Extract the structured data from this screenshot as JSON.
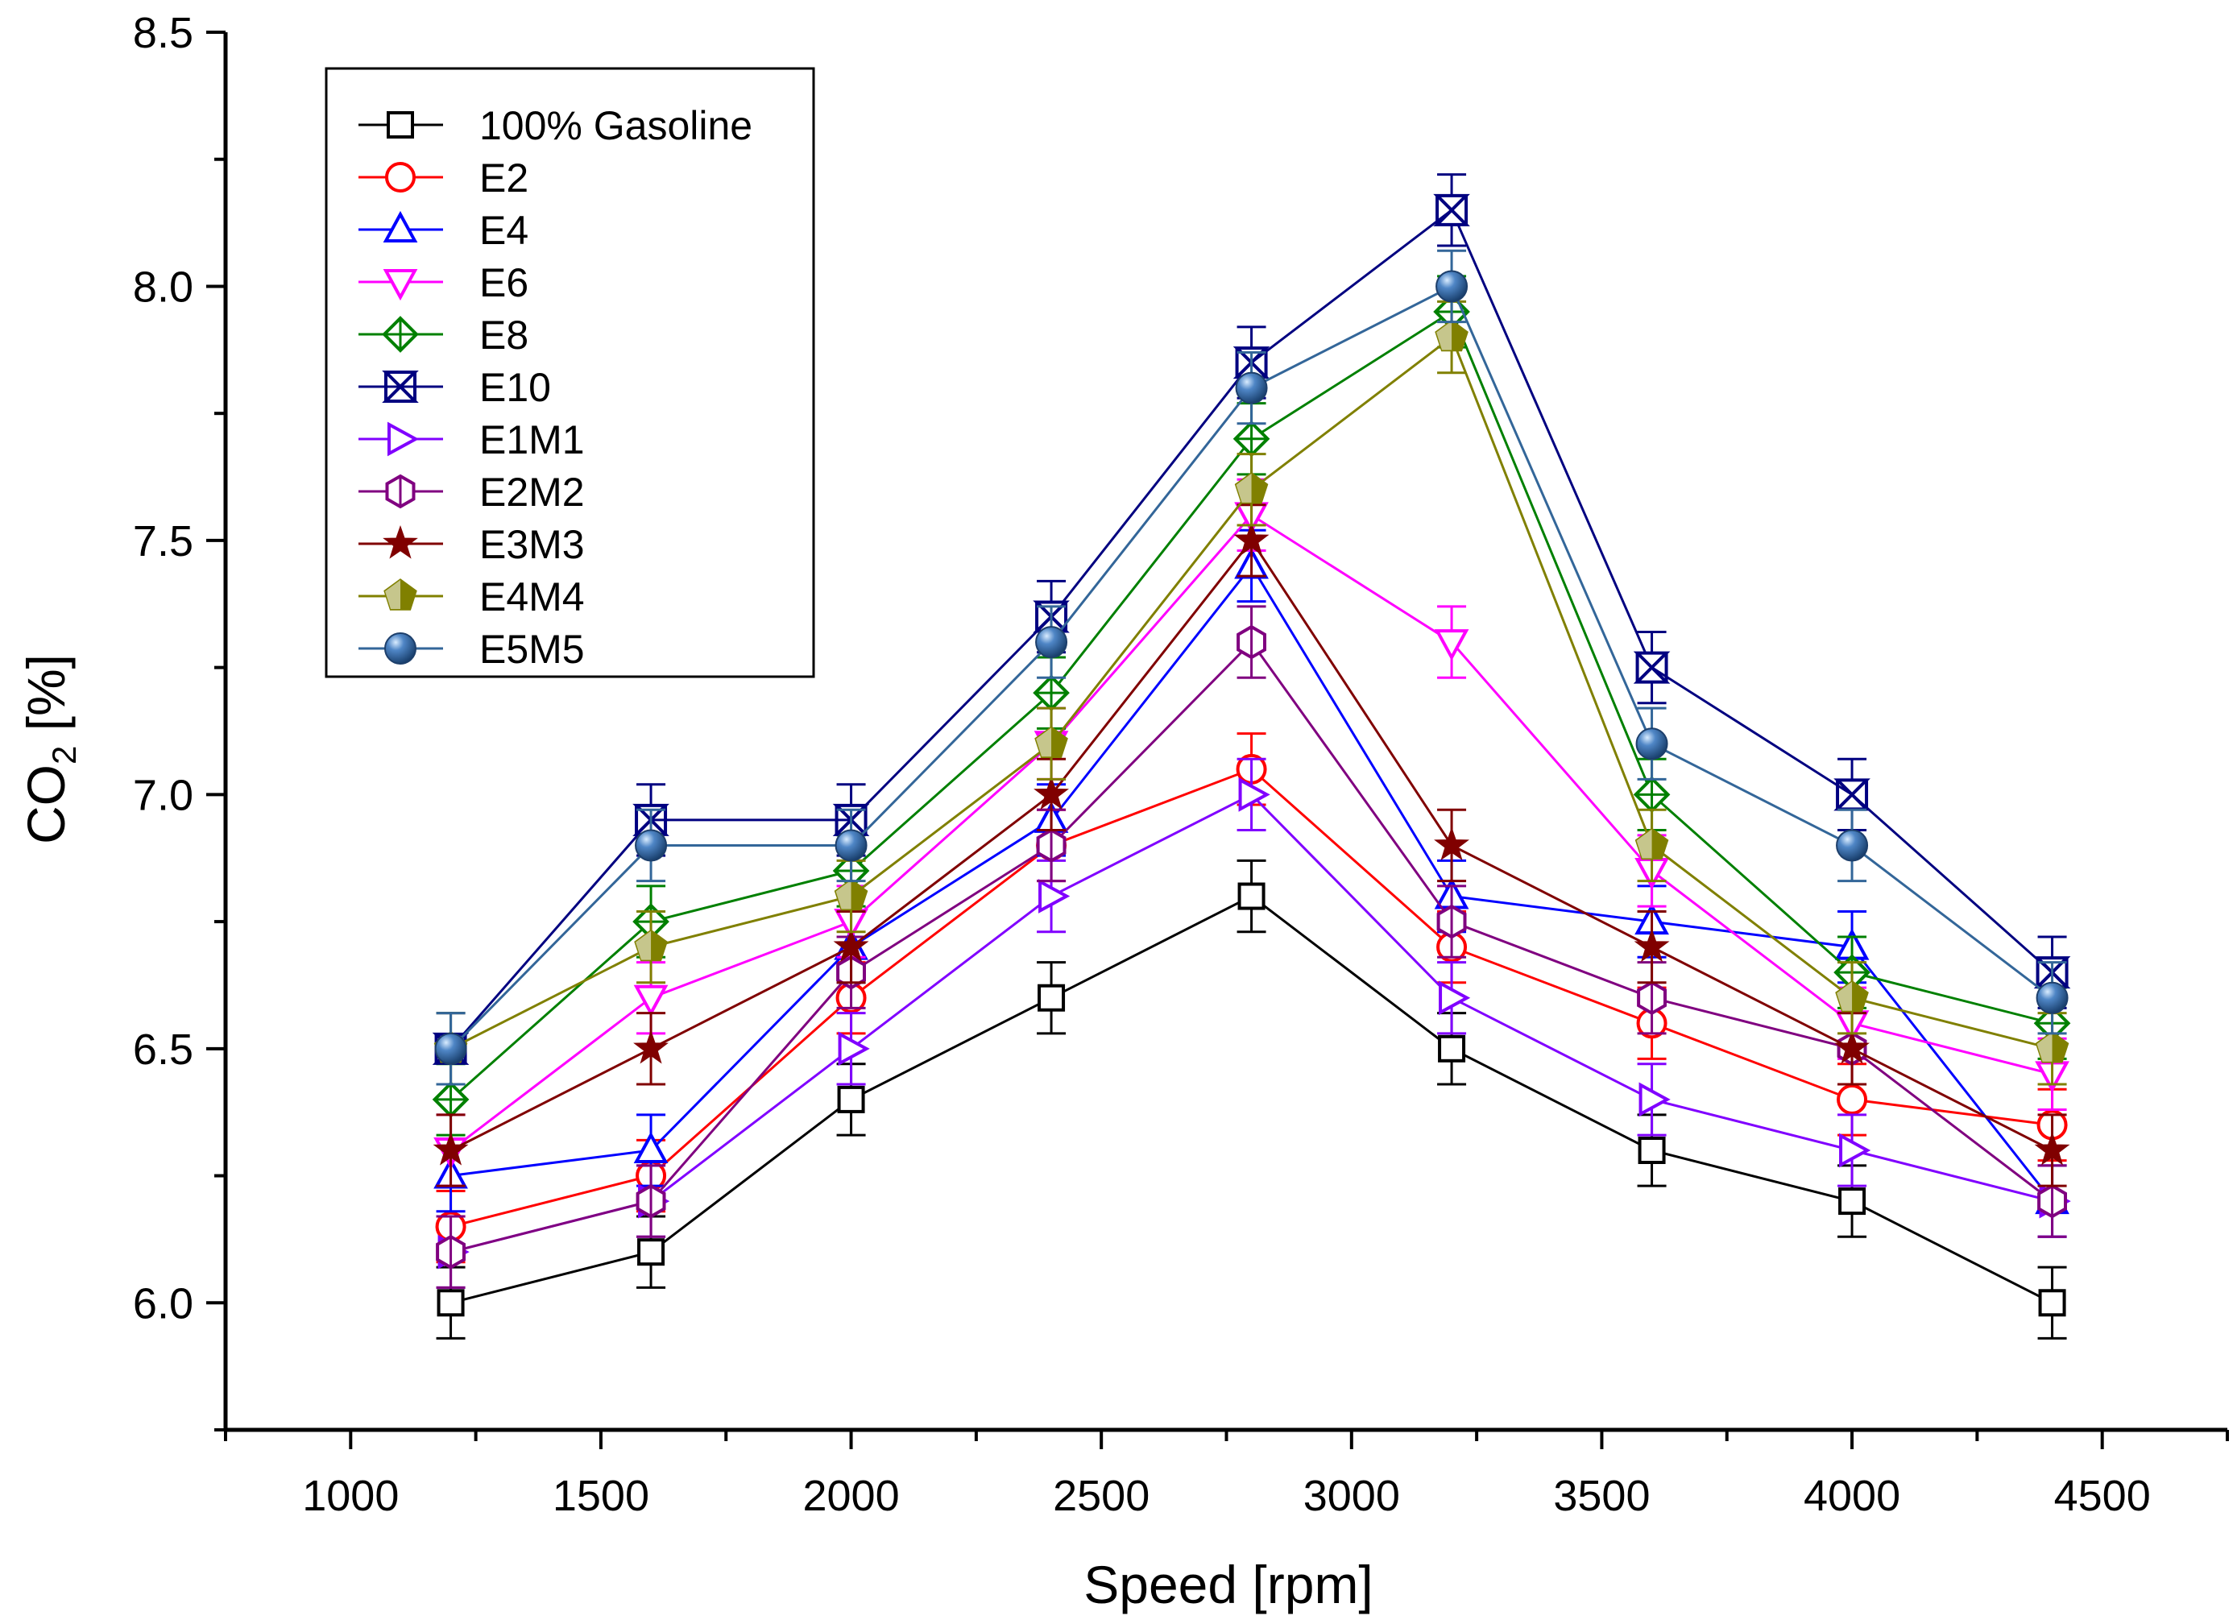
{
  "chart_data": {
    "type": "line",
    "title": "",
    "xlabel": "Speed [rpm]",
    "ylabel_main": "CO",
    "ylabel_sub": "2",
    "ylabel_unit": " [%]",
    "xlim": [
      750,
      4750
    ],
    "ylim": [
      5.75,
      8.5
    ],
    "xticks": [
      1000,
      1500,
      2000,
      2500,
      3000,
      3500,
      4000,
      4500
    ],
    "xtick_labels": [
      "1000",
      "1500",
      "2000",
      "2500",
      "3000",
      "3500",
      "4000",
      "4500"
    ],
    "yticks": [
      6.0,
      6.5,
      7.0,
      7.5,
      8.0,
      8.5
    ],
    "ytick_labels": [
      "6.0",
      "6.5",
      "7.0",
      "7.5",
      "8.0",
      "8.5"
    ],
    "error_bar": 0.07,
    "legend_position": "top-left",
    "x": [
      1200,
      1600,
      2000,
      2400,
      2800,
      3200,
      3600,
      4000,
      4400
    ],
    "series": [
      {
        "name": "100% Gasoline",
        "color": "#000000",
        "marker": "square",
        "values": [
          6.0,
          6.1,
          6.4,
          6.6,
          6.8,
          6.5,
          6.3,
          6.2,
          6.0
        ]
      },
      {
        "name": "E2",
        "color": "#ff0000",
        "marker": "circle",
        "values": [
          6.15,
          6.25,
          6.6,
          6.9,
          7.05,
          6.7,
          6.55,
          6.4,
          6.35
        ]
      },
      {
        "name": "E4",
        "color": "#0000ff",
        "marker": "triangle-up",
        "values": [
          6.25,
          6.3,
          6.7,
          6.95,
          7.45,
          6.8,
          6.75,
          6.7,
          6.2
        ]
      },
      {
        "name": "E6",
        "color": "#ff00ff",
        "marker": "triangle-down",
        "values": [
          6.3,
          6.6,
          6.75,
          7.1,
          7.55,
          7.3,
          6.85,
          6.55,
          6.45
        ]
      },
      {
        "name": "E8",
        "color": "#008000",
        "marker": "diamond",
        "values": [
          6.4,
          6.75,
          6.85,
          7.2,
          7.7,
          7.95,
          7.0,
          6.65,
          6.55
        ]
      },
      {
        "name": "E10",
        "color": "#000080",
        "marker": "hourglass",
        "values": [
          6.5,
          6.95,
          6.95,
          7.35,
          7.85,
          8.15,
          7.25,
          7.0,
          6.65
        ]
      },
      {
        "name": "E1M1",
        "color": "#8000ff",
        "marker": "triangle-right",
        "values": [
          6.1,
          6.2,
          6.5,
          6.8,
          7.0,
          6.6,
          6.4,
          6.3,
          6.2
        ]
      },
      {
        "name": "E2M2",
        "color": "#800080",
        "marker": "hexagon",
        "values": [
          6.1,
          6.2,
          6.65,
          6.9,
          7.3,
          6.75,
          6.6,
          6.5,
          6.2
        ]
      },
      {
        "name": "E3M3",
        "color": "#800000",
        "marker": "star",
        "values": [
          6.3,
          6.5,
          6.7,
          7.0,
          7.5,
          6.9,
          6.7,
          6.5,
          6.3
        ]
      },
      {
        "name": "E4M4",
        "color": "#808000",
        "marker": "pentagon",
        "values": [
          6.5,
          6.7,
          6.8,
          7.1,
          7.6,
          7.9,
          6.9,
          6.6,
          6.5
        ]
      },
      {
        "name": "E5M5",
        "color": "#336699",
        "marker": "sphere",
        "values": [
          6.5,
          6.9,
          6.9,
          7.3,
          7.8,
          8.0,
          7.1,
          6.9,
          6.6
        ]
      }
    ]
  }
}
